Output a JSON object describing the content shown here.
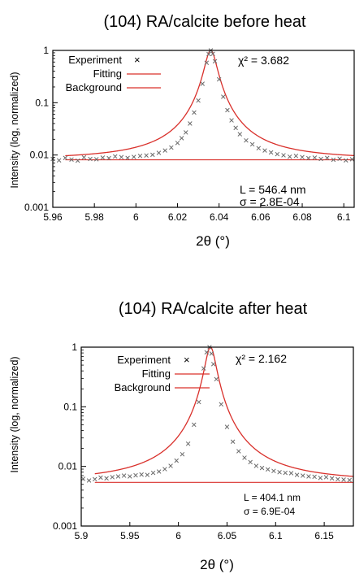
{
  "chart_data": [
    {
      "type": "scatter",
      "title": "(104) RA/calcite  before heat",
      "xlabel": "2θ (°)",
      "ylabel": "Intensity (log, normalized)",
      "xlim": [
        5.96,
        6.105
      ],
      "ylim": [
        0.001,
        1
      ],
      "yscale": "log",
      "xticks": [
        "5.96",
        "5.98",
        "6",
        "6.02",
        "6.04",
        "6.06",
        "6.08",
        "6.1"
      ],
      "yticks": [
        "0.001",
        "0.01",
        "0.1",
        "1"
      ],
      "grid": false,
      "legend": {
        "placement": "top-left",
        "entries": [
          "Experiment",
          "Fitting",
          "Background"
        ]
      },
      "annotations": [
        "χ² = 3.682",
        "L = 546.4 nm",
        "σ = 2.8E-04"
      ],
      "peak": {
        "center": 6.036,
        "hwhm": 0.0028,
        "amplitude": 1.0
      },
      "background_level": 0.0081,
      "series": [
        {
          "name": "Experiment",
          "kind": "markers",
          "color": "#6a6a6a",
          "x": [
            5.96,
            5.963,
            5.966,
            5.969,
            5.972,
            5.975,
            5.978,
            5.981,
            5.984,
            5.987,
            5.99,
            5.993,
            5.996,
            5.999,
            6.002,
            6.005,
            6.008,
            6.011,
            6.014,
            6.017,
            6.02,
            6.022,
            6.024,
            6.026,
            6.028,
            6.03,
            6.032,
            6.034,
            6.035,
            6.036,
            6.037,
            6.038,
            6.04,
            6.042,
            6.044,
            6.046,
            6.048,
            6.05,
            6.053,
            6.056,
            6.059,
            6.062,
            6.065,
            6.068,
            6.071,
            6.074,
            6.077,
            6.08,
            6.083,
            6.086,
            6.089,
            6.092,
            6.095,
            6.098,
            6.101,
            6.104
          ],
          "y": [
            0.0084,
            0.0079,
            0.0088,
            0.0082,
            0.0078,
            0.009,
            0.0084,
            0.0083,
            0.0089,
            0.0087,
            0.0094,
            0.0091,
            0.0088,
            0.0092,
            0.0096,
            0.0098,
            0.0101,
            0.011,
            0.0122,
            0.0139,
            0.017,
            0.021,
            0.027,
            0.04,
            0.065,
            0.11,
            0.23,
            0.58,
            0.85,
            1.0,
            0.86,
            0.62,
            0.28,
            0.13,
            0.072,
            0.046,
            0.033,
            0.025,
            0.019,
            0.016,
            0.0135,
            0.0122,
            0.0112,
            0.0104,
            0.0099,
            0.0093,
            0.0096,
            0.0091,
            0.0087,
            0.0089,
            0.0084,
            0.0088,
            0.0081,
            0.0085,
            0.0079,
            0.0083
          ]
        },
        {
          "name": "Fitting",
          "kind": "line",
          "color": "#d9302b"
        },
        {
          "name": "Background",
          "kind": "line",
          "color": "#d9302b"
        }
      ]
    },
    {
      "type": "scatter",
      "title": "(104) RA/calcite  after heat",
      "xlabel": "2θ (°)",
      "ylabel": "Intensity (log, normalized)",
      "xlim": [
        5.9,
        6.18
      ],
      "ylim": [
        0.001,
        1
      ],
      "yscale": "log",
      "xticks": [
        "5.9",
        "5.95",
        "6",
        "6.05",
        "6.1",
        "6.15"
      ],
      "yticks": [
        "0.001",
        "0.01",
        "0.1",
        "1"
      ],
      "grid": false,
      "legend": {
        "placement": "top-left",
        "entries": [
          "Experiment",
          "Fitting",
          "Background"
        ]
      },
      "annotations": [
        "χ² = 2.162",
        "L = 404.1 nm",
        "σ = 6.9E-04"
      ],
      "peak": {
        "center": 6.033,
        "hwhm": 0.0055,
        "amplitude": 1.0
      },
      "background_level": 0.0054,
      "series": [
        {
          "name": "Experiment",
          "kind": "markers",
          "color": "#6a6a6a",
          "x": [
            5.902,
            5.908,
            5.914,
            5.92,
            5.926,
            5.932,
            5.938,
            5.944,
            5.95,
            5.956,
            5.962,
            5.968,
            5.974,
            5.98,
            5.986,
            5.992,
            5.998,
            6.004,
            6.01,
            6.016,
            6.021,
            6.026,
            6.029,
            6.032,
            6.034,
            6.036,
            6.039,
            6.044,
            6.05,
            6.056,
            6.062,
            6.068,
            6.074,
            6.08,
            6.086,
            6.092,
            6.098,
            6.104,
            6.11,
            6.116,
            6.122,
            6.128,
            6.134,
            6.14,
            6.146,
            6.152,
            6.158,
            6.164,
            6.17,
            6.176
          ],
          "y": [
            0.0062,
            0.0058,
            0.0061,
            0.0065,
            0.0063,
            0.0066,
            0.0068,
            0.007,
            0.0068,
            0.0071,
            0.0073,
            0.0072,
            0.0078,
            0.0082,
            0.009,
            0.0102,
            0.0125,
            0.016,
            0.024,
            0.05,
            0.12,
            0.44,
            0.82,
            1.0,
            0.78,
            0.52,
            0.29,
            0.11,
            0.046,
            0.026,
            0.018,
            0.014,
            0.0118,
            0.0102,
            0.0094,
            0.0089,
            0.0084,
            0.008,
            0.0078,
            0.0077,
            0.0072,
            0.007,
            0.0068,
            0.0067,
            0.0064,
            0.0066,
            0.0063,
            0.0061,
            0.006,
            0.0059
          ]
        },
        {
          "name": "Fitting",
          "kind": "line",
          "color": "#d9302b"
        },
        {
          "name": "Background",
          "kind": "line",
          "color": "#d9302b"
        }
      ]
    }
  ]
}
